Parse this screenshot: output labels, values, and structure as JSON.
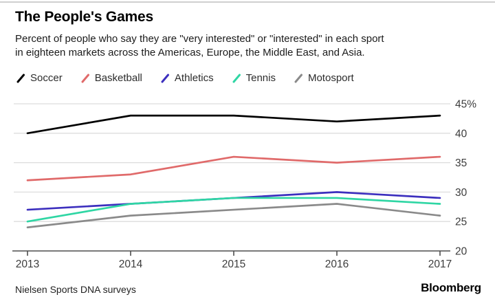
{
  "header": {
    "title": "The People's Games",
    "subtitle_line1": "Percent of people who say they are \"very interested\" or \"interested\" in each sport",
    "subtitle_line2": "in eighteen markets across the Americas, Europe, the Middle East, and Asia."
  },
  "footer": {
    "source": "Nielsen Sports DNA surveys",
    "brand": "Bloomberg"
  },
  "chart_data": {
    "type": "line",
    "title": "The People's Games",
    "x": [
      2013,
      2014,
      2015,
      2016,
      2017
    ],
    "x_tick_labels": [
      "2013",
      "2014",
      "2015",
      "2016",
      "2017"
    ],
    "series": [
      {
        "name": "Soccer",
        "color": "#000000",
        "values": [
          40,
          43,
          43,
          42,
          43
        ]
      },
      {
        "name": "Basketball",
        "color": "#e06a6a",
        "values": [
          32,
          33,
          36,
          35,
          36
        ]
      },
      {
        "name": "Athletics",
        "color": "#3c2fbe",
        "values": [
          27,
          28,
          29,
          30,
          29
        ]
      },
      {
        "name": "Tennis",
        "color": "#2fd6a4",
        "values": [
          25,
          28,
          29,
          29,
          28
        ]
      },
      {
        "name": "Motosport",
        "color": "#8a8a8a",
        "values": [
          24,
          26,
          27,
          28,
          26
        ]
      }
    ],
    "ylim": [
      20,
      45
    ],
    "yticks": [
      {
        "value": 20,
        "label": "20"
      },
      {
        "value": 25,
        "label": "25"
      },
      {
        "value": 30,
        "label": "30"
      },
      {
        "value": 35,
        "label": "35"
      },
      {
        "value": 40,
        "label": "40"
      },
      {
        "value": 45,
        "label": "45%"
      }
    ],
    "grid": true,
    "legend_position": "top",
    "colors": {
      "gridline": "#dcdcdc",
      "axis": "#4d4d4d",
      "tick_label": "#3c3c3c"
    }
  }
}
